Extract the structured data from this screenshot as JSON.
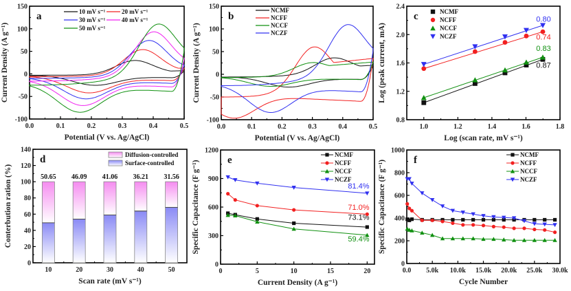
{
  "colors": {
    "black": "#111111",
    "red": "#f22020",
    "blue": "#3030f0",
    "green": "#109010",
    "magenta": "#f020f0"
  },
  "chart_data": [
    {
      "id": "a",
      "type": "line",
      "panel_label": "a",
      "xlabel": "Potential (V vs. Ag/AgCl)",
      "ylabel": "Current Density (A g⁻¹)",
      "xlim": [
        0,
        0.5
      ],
      "ylim": [
        -100,
        150
      ],
      "xticks": [
        "0.0",
        "0.1",
        "0.2",
        "0.3",
        "0.4",
        "0.5"
      ],
      "yticks": [
        "-100",
        "-50",
        "0",
        "50",
        "100",
        "150"
      ],
      "legend": "top-left",
      "series": [
        {
          "name": "10 mV s⁻¹",
          "color": "black",
          "peak_anodic": [
            0.34,
            30
          ],
          "peak_cathodic": [
            0.21,
            -25
          ],
          "start": -3,
          "end_upper": 7
        },
        {
          "name": "20 mV s⁻¹",
          "color": "red",
          "peak_anodic": [
            0.365,
            54
          ],
          "peak_cathodic": [
            0.19,
            -41
          ],
          "start": -6,
          "end_upper": 13
        },
        {
          "name": "30 mV s⁻¹",
          "color": "blue",
          "peak_anodic": [
            0.385,
            74
          ],
          "peak_cathodic": [
            0.18,
            -52
          ],
          "start": -10,
          "end_upper": 20
        },
        {
          "name": "40 mV s⁻¹",
          "color": "magenta",
          "peak_anodic": [
            0.4,
            92
          ],
          "peak_cathodic": [
            0.17,
            -63
          ],
          "start": -16,
          "end_upper": 33
        },
        {
          "name": "50 mV s⁻¹",
          "color": "green",
          "peak_anodic": [
            0.415,
            107
          ],
          "peak_cathodic": [
            0.16,
            -71
          ],
          "start": -25,
          "end_upper": 52
        }
      ]
    },
    {
      "id": "b",
      "type": "line",
      "panel_label": "b",
      "xlabel": "Potential (V vs. Ag/AgCl)",
      "ylabel": "Current Density (A g⁻¹)",
      "xlim": [
        0,
        0.5
      ],
      "ylim": [
        -100,
        150
      ],
      "xticks": [
        "0.0",
        "0.1",
        "0.2",
        "0.3",
        "0.4",
        "0.5"
      ],
      "yticks": [
        "-100",
        "-50",
        "0",
        "50",
        "100",
        "150"
      ],
      "legend": "top-left",
      "series": [
        {
          "name": "NCMF",
          "color": "black",
          "peak_anodic": [
            0.37,
            35
          ],
          "peak_cathodic": [
            0.22,
            -25
          ],
          "start": -6,
          "end_upper": 20
        },
        {
          "name": "NCFF",
          "color": "red",
          "peak_anodic": [
            0.305,
            80
          ],
          "peak_cathodic": [
            0.04,
            -63
          ],
          "start": -50,
          "end_upper": 35
        },
        {
          "name": "NCCF",
          "color": "green",
          "peak_anodic": [
            0.3,
            26
          ],
          "peak_cathodic": [
            0.16,
            -23
          ],
          "start": -7,
          "end_upper": 27
        },
        {
          "name": "NCZF",
          "color": "blue",
          "peak_anodic": [
            0.415,
            106
          ],
          "peak_cathodic": [
            0.16,
            -70
          ],
          "start": -25,
          "end_upper": 52
        }
      ]
    },
    {
      "id": "c",
      "type": "scatter",
      "panel_label": "c",
      "xlabel": "Log (scan rate, mV s⁻¹)",
      "ylabel": "Log (peak current, mA)",
      "xlim": [
        0.9,
        1.8
      ],
      "ylim": [
        0.8,
        2.4
      ],
      "xticks": [
        "1.0",
        "1.2",
        "1.4",
        "1.6",
        "1.8"
      ],
      "yticks": [
        "0.8",
        "1.2",
        "1.6",
        "2.0",
        "2.4"
      ],
      "x": [
        1.0,
        1.301,
        1.477,
        1.602,
        1.699
      ],
      "legend": "top-left",
      "series": [
        {
          "name": "NCMF",
          "color": "black",
          "marker": "square",
          "values": [
            1.04,
            1.31,
            1.46,
            1.57,
            1.65
          ],
          "slope_label": "0.87"
        },
        {
          "name": "NCFF",
          "color": "red",
          "marker": "circle",
          "values": [
            1.52,
            1.76,
            1.89,
            1.98,
            2.04
          ],
          "slope_label": "0.74"
        },
        {
          "name": "NCCF",
          "color": "green",
          "marker": "triangle-up",
          "values": [
            1.11,
            1.36,
            1.5,
            1.61,
            1.68
          ],
          "slope_label": "0.83"
        },
        {
          "name": "NCZF",
          "color": "blue",
          "marker": "triangle-down",
          "values": [
            1.58,
            1.83,
            1.97,
            2.06,
            2.13
          ],
          "slope_label": "0.80"
        }
      ]
    },
    {
      "id": "d",
      "type": "bar",
      "panel_label": "d",
      "xlabel": "Scan rate (mV s⁻¹)",
      "ylabel": "Conterbution ration (%)",
      "ylim": [
        0,
        140
      ],
      "xlim": [
        5,
        55
      ],
      "categories": [
        "10",
        "20",
        "30",
        "40",
        "50"
      ],
      "xticks": [
        "10",
        "20",
        "30",
        "40",
        "50"
      ],
      "yticks": [
        "0",
        "20",
        "40",
        "60",
        "80",
        "100",
        "120",
        "140"
      ],
      "legend": "top-right",
      "series": [
        {
          "name": "Surface-controlled",
          "values": [
            49.35,
            53.91,
            58.94,
            63.79,
            68.44
          ]
        },
        {
          "name": "Diffusion-controlled",
          "values": [
            50.65,
            46.09,
            41.06,
            36.21,
            31.56
          ]
        }
      ],
      "data_labels": [
        "50.65",
        "46.09",
        "41.06",
        "36.21",
        "31.56"
      ]
    },
    {
      "id": "e",
      "type": "line",
      "panel_label": "e",
      "xlabel": "Current Density (A g⁻¹)",
      "ylabel": "Specific Capacitance (F g⁻¹)",
      "xlim": [
        0,
        21
      ],
      "ylim": [
        0,
        1200
      ],
      "xticks": [
        "0",
        "5",
        "10",
        "15",
        "20"
      ],
      "yticks": [
        "0",
        "300",
        "600",
        "900",
        "1200"
      ],
      "x": [
        1,
        2,
        5,
        10,
        20
      ],
      "legend": "top-right",
      "series": [
        {
          "name": "NCMF",
          "color": "black",
          "marker": "square",
          "values": [
            535,
            520,
            475,
            430,
            390
          ],
          "retention": "73.1%"
        },
        {
          "name": "NCFF",
          "color": "red",
          "marker": "circle",
          "values": [
            740,
            675,
            615,
            570,
            525
          ],
          "retention": "71.0%"
        },
        {
          "name": "NCCF",
          "color": "green",
          "marker": "triangle-up",
          "values": [
            515,
            510,
            445,
            370,
            305
          ],
          "retention": "59.4%"
        },
        {
          "name": "NCZF",
          "color": "blue",
          "marker": "triangle-down",
          "values": [
            915,
            885,
            850,
            805,
            745
          ],
          "retention": "81.4%"
        }
      ]
    },
    {
      "id": "f",
      "type": "line",
      "panel_label": "f",
      "xlabel": "Cycle Number",
      "ylabel": "Specific Capacitance (F g⁻¹)",
      "xlim": [
        0,
        30000
      ],
      "ylim": [
        0,
        1000
      ],
      "xticks": [
        "0.0",
        "5.0k",
        "10.0k",
        "15.0k",
        "20.0k",
        "25.0k",
        "30.0k"
      ],
      "yticks": [
        "0",
        "200",
        "400",
        "600",
        "800",
        "1000"
      ],
      "x": [
        100,
        500,
        1000,
        3000,
        5000,
        7000,
        9000,
        11000,
        13000,
        15000,
        17000,
        19000,
        21000,
        23000,
        25000,
        27000,
        29000
      ],
      "legend": "top-right",
      "series": [
        {
          "name": "NCMF",
          "color": "black",
          "marker": "square",
          "values": [
            390,
            380,
            390,
            385,
            385,
            385,
            385,
            385,
            385,
            385,
            385,
            385,
            385,
            385,
            385,
            385,
            385
          ]
        },
        {
          "name": "NCFF",
          "color": "red",
          "marker": "circle",
          "values": [
            525,
            485,
            465,
            380,
            380,
            370,
            355,
            340,
            340,
            335,
            325,
            320,
            310,
            310,
            300,
            295,
            275
          ]
        },
        {
          "name": "NCCF",
          "color": "green",
          "marker": "triangle-up",
          "values": [
            305,
            295,
            290,
            270,
            250,
            220,
            220,
            220,
            220,
            215,
            215,
            210,
            205,
            205,
            205,
            205,
            205
          ]
        },
        {
          "name": "NCZF",
          "color": "blue",
          "marker": "triangle-down",
          "values": [
            745,
            745,
            705,
            620,
            560,
            505,
            465,
            450,
            435,
            420,
            410,
            405,
            400,
            375,
            350,
            345,
            340
          ]
        }
      ]
    }
  ]
}
